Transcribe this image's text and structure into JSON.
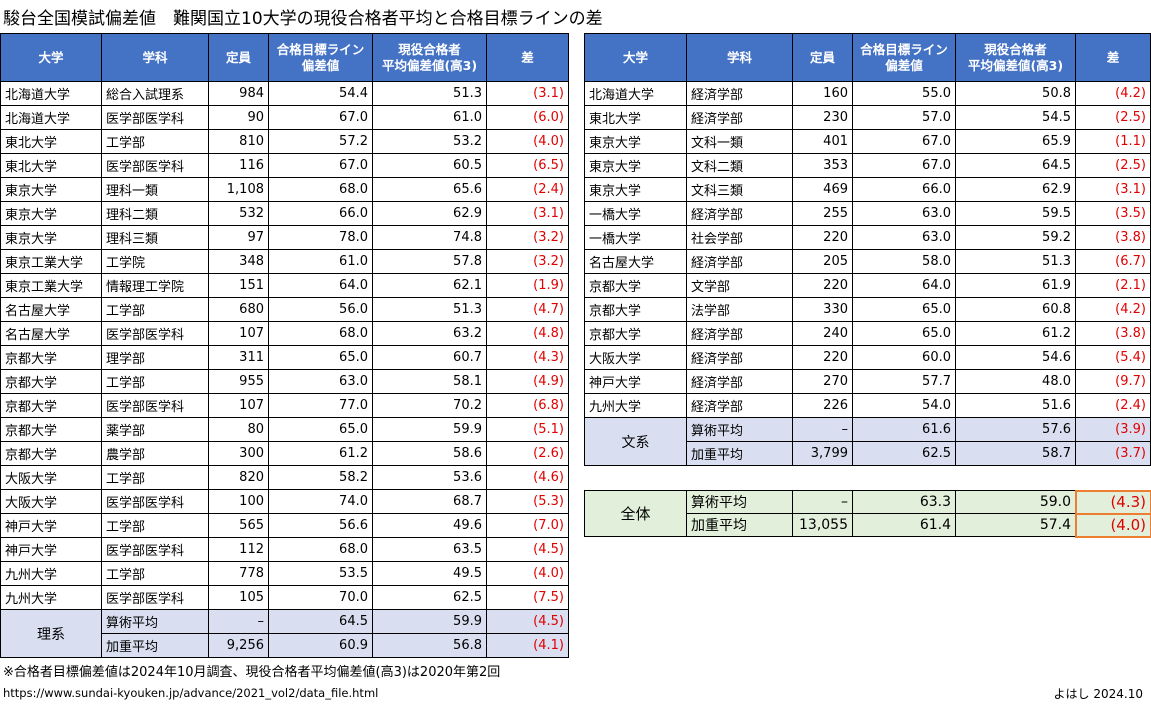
{
  "title": "駿台全国模試偏差値　難関国立10大学の現役合格者平均と合格目標ラインの差",
  "headers": {
    "university": "大学",
    "department": "学科",
    "capacity": "定員",
    "target_line_1": "合格目標ライン",
    "target_line_2": "偏差値",
    "avg_1": "現役合格者",
    "avg_2": "平均偏差値(高3)",
    "diff": "差"
  },
  "science": {
    "rows": [
      {
        "univ": "北海道大学",
        "dept": "総合入試理系",
        "cap": "984",
        "target": "54.4",
        "avg": "51.3",
        "diff": "(3.1)"
      },
      {
        "univ": "北海道大学",
        "dept": "医学部医学科",
        "cap": "90",
        "target": "67.0",
        "avg": "61.0",
        "diff": "(6.0)"
      },
      {
        "univ": "東北大学",
        "dept": "工学部",
        "cap": "810",
        "target": "57.2",
        "avg": "53.2",
        "diff": "(4.0)"
      },
      {
        "univ": "東北大学",
        "dept": "医学部医学科",
        "cap": "116",
        "target": "67.0",
        "avg": "60.5",
        "diff": "(6.5)"
      },
      {
        "univ": "東京大学",
        "dept": "理科一類",
        "cap": "1,108",
        "target": "68.0",
        "avg": "65.6",
        "diff": "(2.4)"
      },
      {
        "univ": "東京大学",
        "dept": "理科二類",
        "cap": "532",
        "target": "66.0",
        "avg": "62.9",
        "diff": "(3.1)"
      },
      {
        "univ": "東京大学",
        "dept": "理科三類",
        "cap": "97",
        "target": "78.0",
        "avg": "74.8",
        "diff": "(3.2)"
      },
      {
        "univ": "東京工業大学",
        "dept": "工学院",
        "cap": "348",
        "target": "61.0",
        "avg": "57.8",
        "diff": "(3.2)"
      },
      {
        "univ": "東京工業大学",
        "dept": "情報理工学院",
        "cap": "151",
        "target": "64.0",
        "avg": "62.1",
        "diff": "(1.9)"
      },
      {
        "univ": "名古屋大学",
        "dept": "工学部",
        "cap": "680",
        "target": "56.0",
        "avg": "51.3",
        "diff": "(4.7)"
      },
      {
        "univ": "名古屋大学",
        "dept": "医学部医学科",
        "cap": "107",
        "target": "68.0",
        "avg": "63.2",
        "diff": "(4.8)"
      },
      {
        "univ": "京都大学",
        "dept": "理学部",
        "cap": "311",
        "target": "65.0",
        "avg": "60.7",
        "diff": "(4.3)"
      },
      {
        "univ": "京都大学",
        "dept": "工学部",
        "cap": "955",
        "target": "63.0",
        "avg": "58.1",
        "diff": "(4.9)"
      },
      {
        "univ": "京都大学",
        "dept": "医学部医学科",
        "cap": "107",
        "target": "77.0",
        "avg": "70.2",
        "diff": "(6.8)"
      },
      {
        "univ": "京都大学",
        "dept": "薬学部",
        "cap": "80",
        "target": "65.0",
        "avg": "59.9",
        "diff": "(5.1)"
      },
      {
        "univ": "京都大学",
        "dept": "農学部",
        "cap": "300",
        "target": "61.2",
        "avg": "58.6",
        "diff": "(2.6)"
      },
      {
        "univ": "大阪大学",
        "dept": "工学部",
        "cap": "820",
        "target": "58.2",
        "avg": "53.6",
        "diff": "(4.6)"
      },
      {
        "univ": "大阪大学",
        "dept": "医学部医学科",
        "cap": "100",
        "target": "74.0",
        "avg": "68.7",
        "diff": "(5.3)"
      },
      {
        "univ": "神戸大学",
        "dept": "工学部",
        "cap": "565",
        "target": "56.6",
        "avg": "49.6",
        "diff": "(7.0)"
      },
      {
        "univ": "神戸大学",
        "dept": "医学部医学科",
        "cap": "112",
        "target": "68.0",
        "avg": "63.5",
        "diff": "(4.5)"
      },
      {
        "univ": "九州大学",
        "dept": "工学部",
        "cap": "778",
        "target": "53.5",
        "avg": "49.5",
        "diff": "(4.0)"
      },
      {
        "univ": "九州大学",
        "dept": "医学部医学科",
        "cap": "105",
        "target": "70.0",
        "avg": "62.5",
        "diff": "(7.5)"
      }
    ],
    "summary": {
      "label": "理系",
      "arith": {
        "label": "算術平均",
        "cap": "–",
        "target": "64.5",
        "avg": "59.9",
        "diff": "(4.5)"
      },
      "weighted": {
        "label": "加重平均",
        "cap": "9,256",
        "target": "60.9",
        "avg": "56.8",
        "diff": "(4.1)"
      }
    }
  },
  "humanities": {
    "rows": [
      {
        "univ": "北海道大学",
        "dept": "経済学部",
        "cap": "160",
        "target": "55.0",
        "avg": "50.8",
        "diff": "(4.2)"
      },
      {
        "univ": "東北大学",
        "dept": "経済学部",
        "cap": "230",
        "target": "57.0",
        "avg": "54.5",
        "diff": "(2.5)"
      },
      {
        "univ": "東京大学",
        "dept": "文科一類",
        "cap": "401",
        "target": "67.0",
        "avg": "65.9",
        "diff": "(1.1)"
      },
      {
        "univ": "東京大学",
        "dept": "文科二類",
        "cap": "353",
        "target": "67.0",
        "avg": "64.5",
        "diff": "(2.5)"
      },
      {
        "univ": "東京大学",
        "dept": "文科三類",
        "cap": "469",
        "target": "66.0",
        "avg": "62.9",
        "diff": "(3.1)"
      },
      {
        "univ": "一橋大学",
        "dept": "経済学部",
        "cap": "255",
        "target": "63.0",
        "avg": "59.5",
        "diff": "(3.5)"
      },
      {
        "univ": "一橋大学",
        "dept": "社会学部",
        "cap": "220",
        "target": "63.0",
        "avg": "59.2",
        "diff": "(3.8)"
      },
      {
        "univ": "名古屋大学",
        "dept": "経済学部",
        "cap": "205",
        "target": "58.0",
        "avg": "51.3",
        "diff": "(6.7)"
      },
      {
        "univ": "京都大学",
        "dept": "文学部",
        "cap": "220",
        "target": "64.0",
        "avg": "61.9",
        "diff": "(2.1)"
      },
      {
        "univ": "京都大学",
        "dept": "法学部",
        "cap": "330",
        "target": "65.0",
        "avg": "60.8",
        "diff": "(4.2)"
      },
      {
        "univ": "京都大学",
        "dept": "経済学部",
        "cap": "240",
        "target": "65.0",
        "avg": "61.2",
        "diff": "(3.8)"
      },
      {
        "univ": "大阪大学",
        "dept": "経済学部",
        "cap": "220",
        "target": "60.0",
        "avg": "54.6",
        "diff": "(5.4)"
      },
      {
        "univ": "神戸大学",
        "dept": "経済学部",
        "cap": "270",
        "target": "57.7",
        "avg": "48.0",
        "diff": "(9.7)"
      },
      {
        "univ": "九州大学",
        "dept": "経済学部",
        "cap": "226",
        "target": "54.0",
        "avg": "51.6",
        "diff": "(2.4)"
      }
    ],
    "summary": {
      "label": "文系",
      "arith": {
        "label": "算術平均",
        "cap": "–",
        "target": "61.6",
        "avg": "57.6",
        "diff": "(3.9)"
      },
      "weighted": {
        "label": "加重平均",
        "cap": "3,799",
        "target": "62.5",
        "avg": "58.7",
        "diff": "(3.7)"
      }
    }
  },
  "overall": {
    "label": "全体",
    "arith": {
      "label": "算術平均",
      "cap": "–",
      "target": "63.3",
      "avg": "59.0",
      "diff": "(4.3)"
    },
    "weighted": {
      "label": "加重平均",
      "cap": "13,055",
      "target": "61.4",
      "avg": "57.4",
      "diff": "(4.0)"
    }
  },
  "footer": {
    "note": "※合格者目標偏差値は2024年10月調査、現役合格者平均偏差値(高3)は2020年第2回",
    "url": "https://www.sundai-kyouken.jp/advance/2021_vol2/data_file.html",
    "signature": "よはし 2024.10"
  },
  "colors": {
    "header_bg": "#4472c4",
    "subtotal_bg": "#d9dff0",
    "overall_bg": "#e2efda",
    "diff_text": "#e00000",
    "highlight_border": "#ed7d31"
  }
}
